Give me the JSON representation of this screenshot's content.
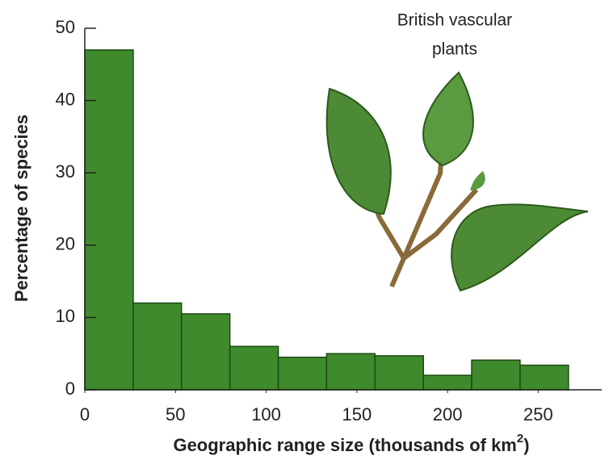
{
  "chart_data": {
    "type": "histogram",
    "annotation": [
      "British vascular",
      "plants"
    ],
    "xlabel": [
      "Geographic range size (thousands of km",
      "2",
      ")"
    ],
    "ylabel": "Percentage of species",
    "bins": [
      0,
      26.7,
      53.3,
      80,
      106.7,
      133.3,
      160,
      186.7,
      213.3,
      240,
      266.7
    ],
    "values": [
      47,
      12,
      10.5,
      6,
      4.5,
      5,
      4.7,
      2,
      4.1,
      3.4
    ],
    "color": "#3f8a2c",
    "edgecolor": "#1d4a12",
    "xlim": [
      0,
      285
    ],
    "ylim": [
      0,
      50
    ],
    "xticks": [
      0,
      50,
      100,
      150,
      200,
      250
    ],
    "yticks": [
      0,
      10,
      20,
      30,
      40,
      50
    ]
  }
}
